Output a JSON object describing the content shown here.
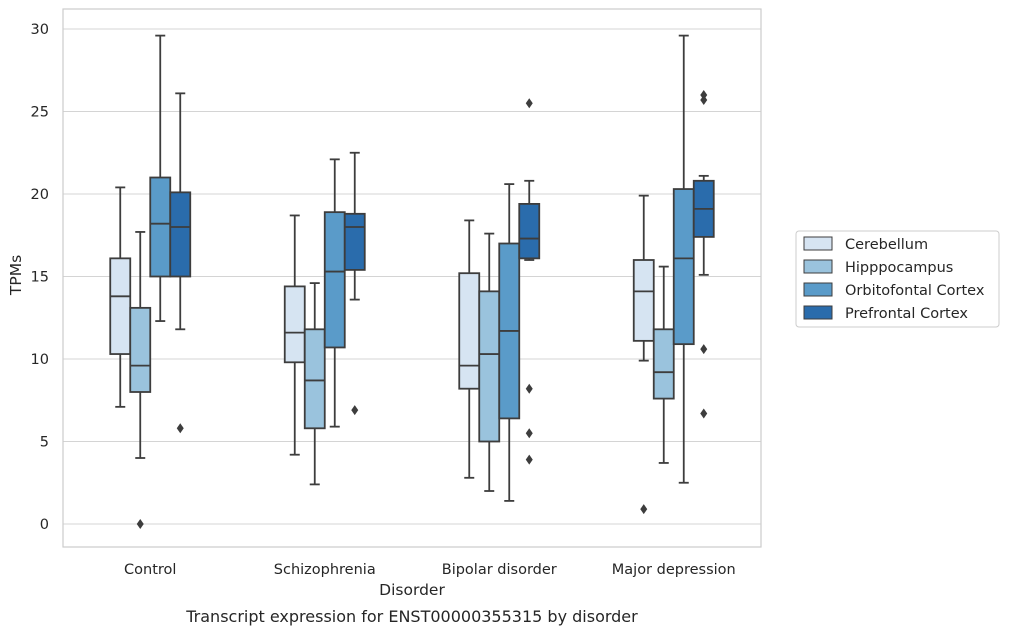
{
  "chart_data": {
    "type": "box",
    "caption": "Transcript expression for ENST00000355315 by disorder",
    "xlabel": "Disorder",
    "ylabel": "TPMs",
    "ylim": [
      -1.4,
      31.2
    ],
    "yticks": [
      0,
      5,
      10,
      15,
      20,
      25,
      30
    ],
    "grid": "horizontal",
    "legend_position": "right-center",
    "categories": [
      "Control",
      "Schizophrenia",
      "Bipolar disorder",
      "Major depression"
    ],
    "series": [
      {
        "name": "Cerebellum",
        "color": "#d6e4f2",
        "boxes": [
          {
            "whislo": 7.1,
            "q1": 10.3,
            "med": 13.8,
            "q3": 16.1,
            "whishi": 20.4,
            "fliers": []
          },
          {
            "whislo": 4.2,
            "q1": 9.8,
            "med": 11.6,
            "q3": 14.4,
            "whishi": 18.7,
            "fliers": []
          },
          {
            "whislo": 2.8,
            "q1": 8.2,
            "med": 9.6,
            "q3": 15.2,
            "whishi": 18.4,
            "fliers": []
          },
          {
            "whislo": 9.9,
            "q1": 11.1,
            "med": 14.1,
            "q3": 16.0,
            "whishi": 19.9,
            "fliers": [
              0.9
            ]
          }
        ]
      },
      {
        "name": "Hipppocampus",
        "color": "#9ac3dd",
        "boxes": [
          {
            "whislo": 4.0,
            "q1": 8.0,
            "med": 9.6,
            "q3": 13.1,
            "whishi": 17.7,
            "fliers": [
              0.0
            ]
          },
          {
            "whislo": 2.4,
            "q1": 5.8,
            "med": 8.7,
            "q3": 11.8,
            "whishi": 14.6,
            "fliers": []
          },
          {
            "whislo": 2.0,
            "q1": 5.0,
            "med": 10.3,
            "q3": 14.1,
            "whishi": 17.6,
            "fliers": []
          },
          {
            "whislo": 3.7,
            "q1": 7.6,
            "med": 9.2,
            "q3": 11.8,
            "whishi": 15.6,
            "fliers": []
          }
        ]
      },
      {
        "name": "Orbitofontal Cortex",
        "color": "#5a9bc9",
        "boxes": [
          {
            "whislo": 12.3,
            "q1": 15.0,
            "med": 18.2,
            "q3": 21.0,
            "whishi": 29.6,
            "fliers": []
          },
          {
            "whislo": 5.9,
            "q1": 10.7,
            "med": 15.3,
            "q3": 18.9,
            "whishi": 22.1,
            "fliers": []
          },
          {
            "whislo": 1.4,
            "q1": 6.4,
            "med": 11.7,
            "q3": 17.0,
            "whishi": 20.6,
            "fliers": []
          },
          {
            "whislo": 2.5,
            "q1": 10.9,
            "med": 16.1,
            "q3": 20.3,
            "whishi": 29.6,
            "fliers": []
          }
        ]
      },
      {
        "name": "Prefrontal Cortex",
        "color": "#2a6cac",
        "boxes": [
          {
            "whislo": 11.8,
            "q1": 15.0,
            "med": 18.0,
            "q3": 20.1,
            "whishi": 26.1,
            "fliers": [
              5.8
            ]
          },
          {
            "whislo": 13.6,
            "q1": 15.4,
            "med": 18.0,
            "q3": 18.8,
            "whishi": 22.5,
            "fliers": [
              6.9
            ]
          },
          {
            "whislo": 16.0,
            "q1": 16.1,
            "med": 17.3,
            "q3": 19.4,
            "whishi": 20.8,
            "fliers": [
              25.5,
              8.2,
              5.5,
              3.9
            ]
          },
          {
            "whislo": 15.1,
            "q1": 17.4,
            "med": 19.1,
            "q3": 20.8,
            "whishi": 21.1,
            "fliers": [
              26.0,
              25.7,
              10.6,
              6.7
            ]
          }
        ]
      }
    ]
  }
}
